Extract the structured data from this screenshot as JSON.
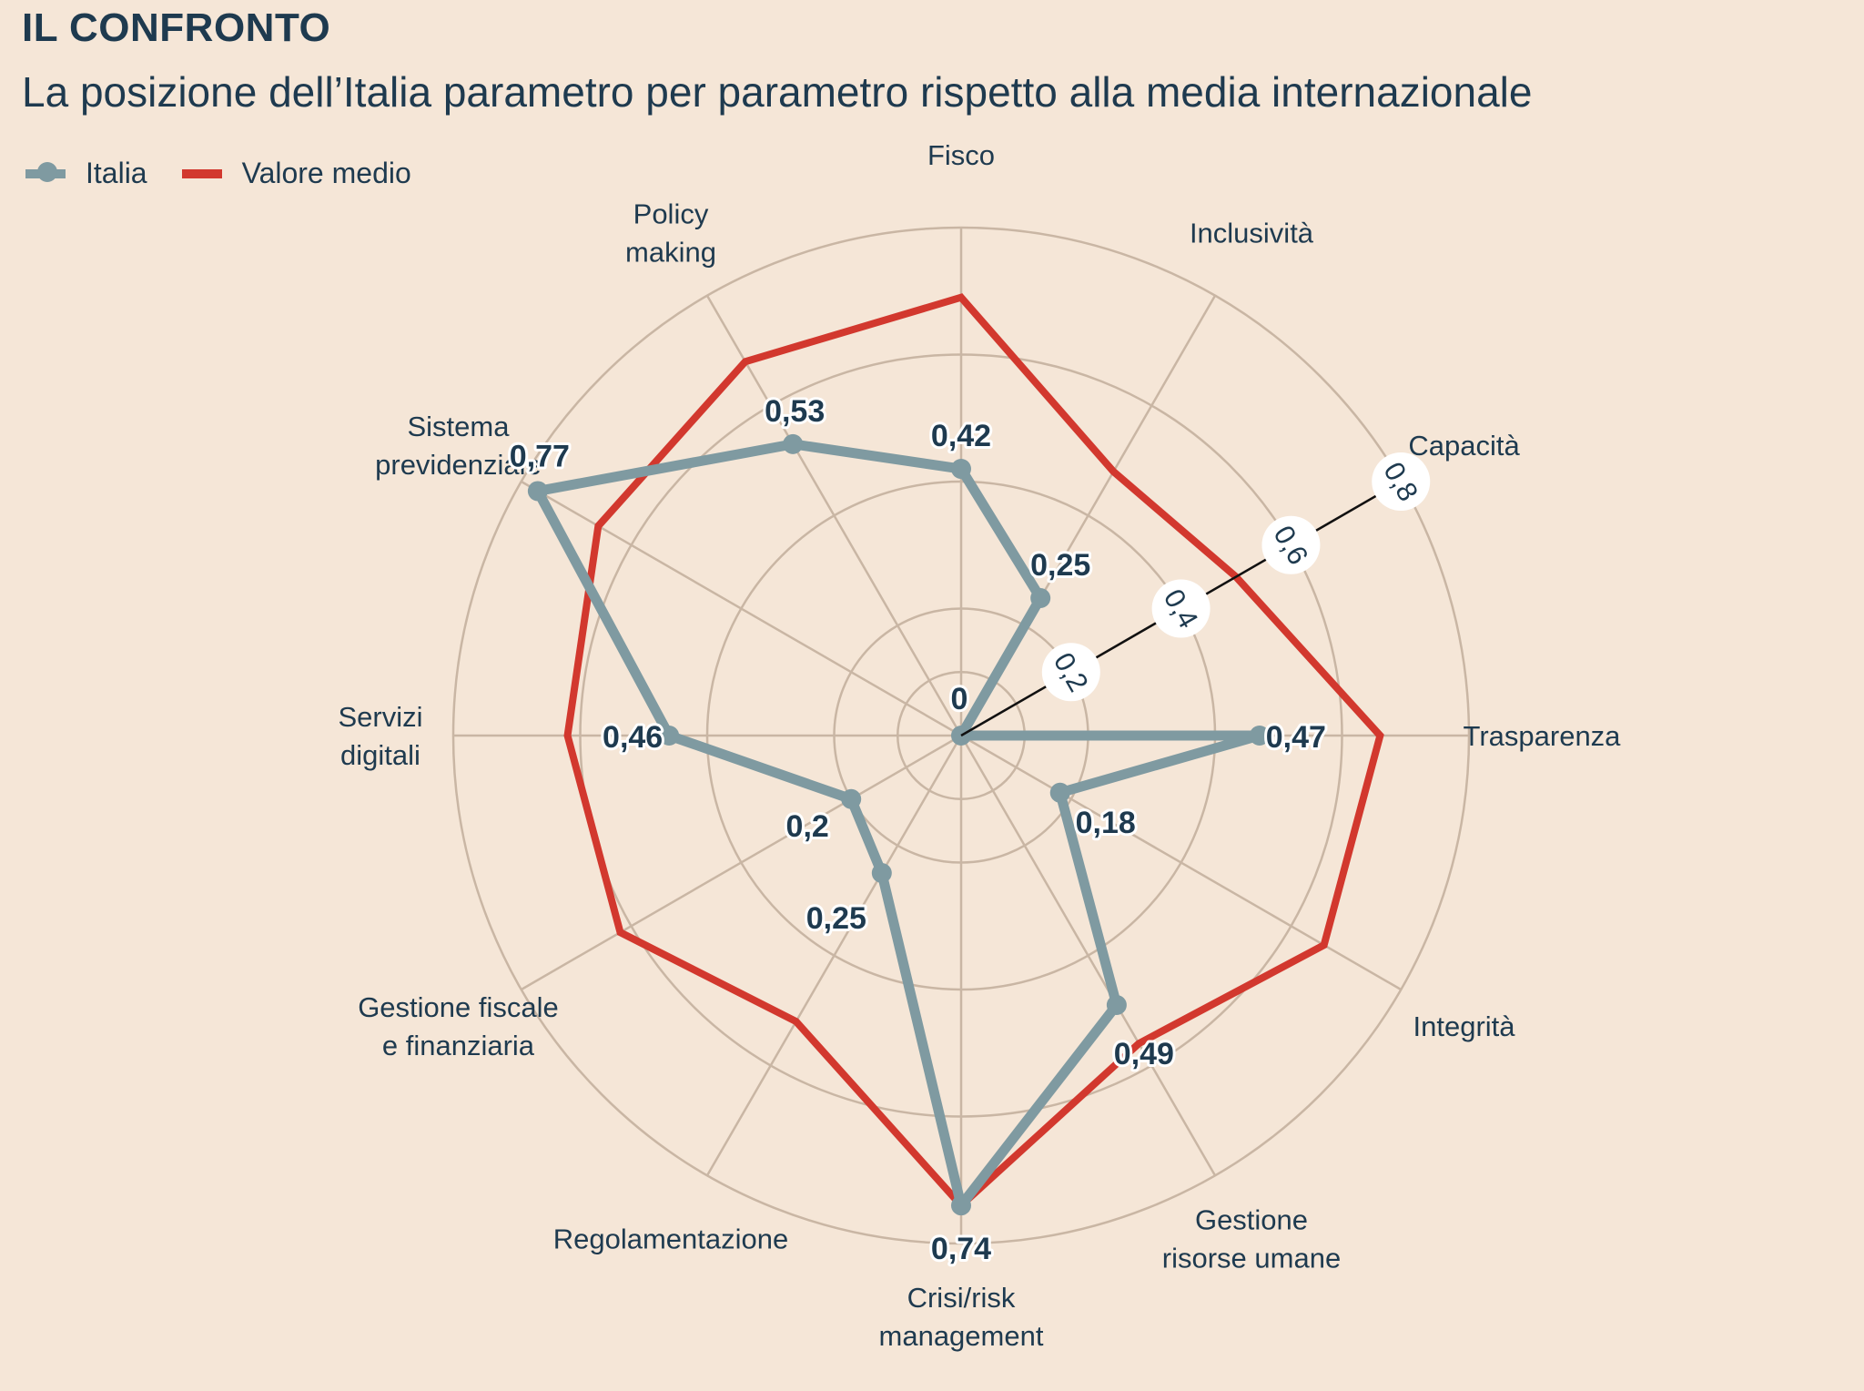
{
  "kicker": "IL CONFRONTO",
  "subtitle": "La posizione dell’Italia parametro per parametro rispetto alla media internazionale",
  "legend": {
    "italia": "Italia",
    "media": "Valore medio"
  },
  "colors": {
    "background": "#f5e6d7",
    "text": "#1e3a4f",
    "italia": "#7f9aa1",
    "media": "#d2382e",
    "grid": "#c9b6a4"
  },
  "chart_data": {
    "type": "radar",
    "categories": [
      "Fisco",
      "Inclusività",
      "Capacità",
      "Trasparenza",
      "Integrità",
      "Gestione risorse umane",
      "Crisi/risk management",
      "Regolamentazione",
      "Gestione fiscale e finanziaria",
      "Servizi digitali",
      "Sistema previdenziale",
      "Policy making"
    ],
    "category_lines": [
      [
        "Fisco"
      ],
      [
        "Inclusività"
      ],
      [
        "Capacità"
      ],
      [
        "Trasparenza"
      ],
      [
        "Integrità"
      ],
      [
        "Gestione",
        "risorse umane"
      ],
      [
        "Crisi/risk",
        "management"
      ],
      [
        "Regolamentazione"
      ],
      [
        "Gestione fiscale",
        "e finanziaria"
      ],
      [
        "Servizi",
        "digitali"
      ],
      [
        "Sistema",
        "previdenziale"
      ],
      [
        "Policy",
        "making"
      ]
    ],
    "series": [
      {
        "name": "Italia",
        "values": [
          0.42,
          0.25,
          0,
          0.47,
          0.18,
          0.49,
          0.74,
          0.25,
          0.2,
          0.46,
          0.77,
          0.53
        ],
        "labels": [
          "0,42",
          "0,25",
          "0",
          "0,47",
          "0,18",
          "0,49",
          "0,74",
          "0,25",
          "0,2",
          "0,46",
          "0,77",
          "0,53"
        ]
      },
      {
        "name": "Valore medio",
        "values": [
          0.69,
          0.48,
          0.5,
          0.66,
          0.66,
          0.56,
          0.74,
          0.52,
          0.62,
          0.62,
          0.66,
          0.68
        ]
      }
    ],
    "rlim": [
      0,
      0.8
    ],
    "rings": [
      0.2,
      0.4,
      0.6,
      0.8
    ],
    "ring_labels": [
      "0,2",
      "0,4",
      "0,6",
      "0,8"
    ],
    "grid": true,
    "legend_position": "top-left"
  }
}
